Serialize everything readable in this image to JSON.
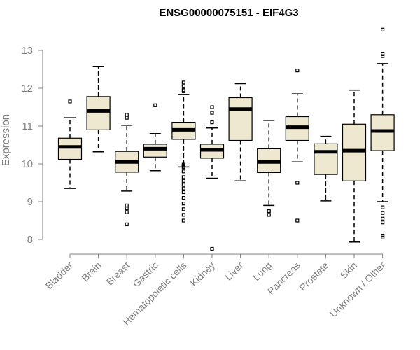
{
  "chart_data": {
    "type": "boxplot",
    "title": "ENSG00000075151 - EIF4G3",
    "ylabel": "Expression",
    "ylim": [
      8,
      13
    ],
    "yticks": [
      8,
      9,
      10,
      11,
      12,
      13
    ],
    "box_color": "#efe8d0",
    "categories": [
      "Bladder",
      "Brain",
      "Breast",
      "Gastric",
      "Hematopoietic cells",
      "Kidney",
      "Liver",
      "Lung",
      "Pancreas",
      "Prostate",
      "Skin",
      "Unknown / Other"
    ],
    "series": [
      {
        "category": "Bladder",
        "min": 9.35,
        "q1": 10.12,
        "median": 10.45,
        "q3": 10.68,
        "max": 11.22,
        "outliers": [
          11.65
        ]
      },
      {
        "category": "Brain",
        "min": 10.32,
        "q1": 10.9,
        "median": 11.4,
        "q3": 11.78,
        "max": 12.57,
        "outliers": []
      },
      {
        "category": "Breast",
        "min": 9.28,
        "q1": 9.78,
        "median": 10.05,
        "q3": 10.33,
        "max": 11.02,
        "outliers": [
          11.3,
          11.22,
          8.9,
          8.82,
          8.72,
          8.4
        ]
      },
      {
        "category": "Gastric",
        "min": 9.82,
        "q1": 10.18,
        "median": 10.4,
        "q3": 10.52,
        "max": 10.8,
        "outliers": [
          11.55
        ]
      },
      {
        "category": "Hematopoietic cells",
        "min": 9.92,
        "q1": 10.65,
        "median": 10.9,
        "q3": 11.1,
        "max": 11.83,
        "outliers": [
          12.15,
          12.05,
          11.95,
          11.92,
          9.98,
          9.95,
          9.92,
          9.8,
          9.65,
          9.55,
          9.45,
          9.35,
          9.25,
          9.1,
          8.95,
          8.8,
          8.65,
          8.5
        ]
      },
      {
        "category": "Kidney",
        "min": 9.62,
        "q1": 10.15,
        "median": 10.37,
        "q3": 10.52,
        "max": 10.95,
        "outliers": [
          11.5,
          11.35,
          11.1,
          7.75
        ]
      },
      {
        "category": "Liver",
        "min": 9.55,
        "q1": 10.62,
        "median": 11.45,
        "q3": 11.75,
        "max": 12.12,
        "outliers": []
      },
      {
        "category": "Lung",
        "min": 8.9,
        "q1": 9.77,
        "median": 10.05,
        "q3": 10.4,
        "max": 11.15,
        "outliers": [
          8.75,
          8.65
        ]
      },
      {
        "category": "Pancreas",
        "min": 10.05,
        "q1": 10.62,
        "median": 10.97,
        "q3": 11.25,
        "max": 11.85,
        "outliers": [
          12.47,
          9.5,
          8.5
        ]
      },
      {
        "category": "Prostate",
        "min": 9.02,
        "q1": 9.72,
        "median": 10.32,
        "q3": 10.53,
        "max": 10.73,
        "outliers": []
      },
      {
        "category": "Skin",
        "min": 7.93,
        "q1": 9.55,
        "median": 10.35,
        "q3": 11.05,
        "max": 11.95,
        "outliers": []
      },
      {
        "category": "Unknown / Other",
        "min": 9.0,
        "q1": 10.35,
        "median": 10.87,
        "q3": 11.3,
        "max": 12.65,
        "outliers": [
          13.55,
          12.9,
          12.85,
          8.85,
          8.7,
          8.55,
          8.45,
          8.1,
          8.05
        ]
      }
    ]
  }
}
